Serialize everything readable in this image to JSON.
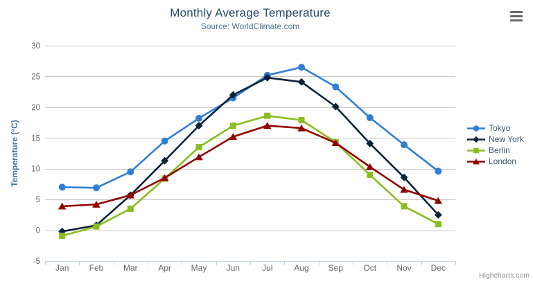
{
  "header": {
    "title": "Monthly Average Temperature",
    "subtitle": "Source: WorldClimate.com"
  },
  "credits": "Highcharts.com",
  "icons": {
    "menu": "hamburger-menu-icon"
  },
  "colors": {
    "title": "#274b6d",
    "subtitle": "#4d759e",
    "axis_line": "#C0D0E0",
    "grid": "#C8C8C8",
    "axis_label": "#666666",
    "axis_title": "#4572A7",
    "legend_text": "#3E576F",
    "credits": "#909090",
    "menu_icon": "#666666"
  },
  "chart_data": {
    "type": "line",
    "title": "Monthly Average Temperature",
    "subtitle": "Source: WorldClimate.com",
    "categories": [
      "Jan",
      "Feb",
      "Mar",
      "Apr",
      "May",
      "Jun",
      "Jul",
      "Aug",
      "Sep",
      "Oct",
      "Nov",
      "Dec"
    ],
    "series": [
      {
        "name": "Tokyo",
        "color": "#2f7ed8",
        "marker": "circle",
        "values": [
          7.0,
          6.9,
          9.5,
          14.5,
          18.2,
          21.5,
          25.2,
          26.5,
          23.3,
          18.3,
          13.9,
          9.6
        ]
      },
      {
        "name": "New York",
        "color": "#0d233a",
        "marker": "diamond",
        "values": [
          -0.2,
          0.8,
          5.7,
          11.3,
          17.0,
          22.0,
          24.8,
          24.1,
          20.1,
          14.1,
          8.6,
          2.5
        ]
      },
      {
        "name": "Berlin",
        "color": "#8bbc21",
        "marker": "square",
        "values": [
          -0.9,
          0.6,
          3.5,
          8.4,
          13.5,
          17.0,
          18.6,
          17.9,
          14.3,
          9.0,
          3.9,
          1.0
        ]
      },
      {
        "name": "London",
        "color": "#910000",
        "marker": "triangle",
        "values": [
          3.9,
          4.2,
          5.7,
          8.5,
          11.9,
          15.2,
          17.0,
          16.6,
          14.2,
          10.3,
          6.6,
          4.8
        ]
      }
    ],
    "xlabel": "",
    "ylabel": "Temperature (°C)",
    "ylim": [
      -5,
      30
    ],
    "ytick_step": 5,
    "grid": true,
    "legend_position": "right"
  }
}
